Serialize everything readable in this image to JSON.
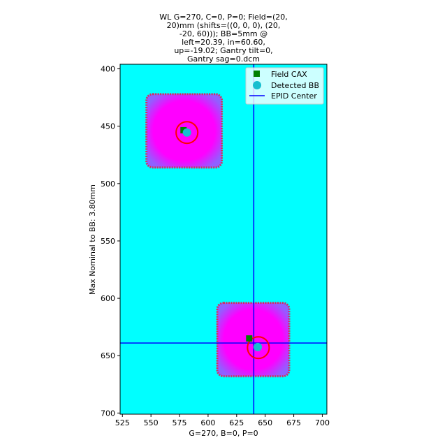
{
  "chart_data": {
    "type": "image-overlay",
    "title_lines": [
      "WL G=270, C=0, P=0; Field=(20,",
      "20)mm (shifts=((0, 0, 0), (20,",
      "-20, 60))); BB=5mm @",
      "left=20.39, in=60.60,",
      "up=-19.02; Gantry tilt=0,",
      "Gantry sag=0.dcm"
    ],
    "xlabel": "G=270, B=0, P=0",
    "ylabel": "Max Nominal to BB: 3.80mm",
    "xlim": [
      523,
      704
    ],
    "ylim": [
      701,
      396
    ],
    "xticks": [
      525,
      550,
      575,
      600,
      625,
      650,
      675,
      700
    ],
    "yticks": [
      400,
      450,
      500,
      550,
      600,
      650,
      700
    ],
    "background_color": "#00ffff",
    "field_color": "#ff00ff",
    "field_edge_color": "#cc3366",
    "fields": [
      {
        "x_min": 546,
        "x_max": 612,
        "y_min": 422,
        "y_max": 486
      },
      {
        "x_min": 608,
        "x_max": 671,
        "y_min": 604,
        "y_max": 668
      }
    ],
    "series": [
      {
        "name": "Field CAX",
        "marker": "square",
        "color": "#008000",
        "points": [
          [
            578.5,
            453.5
          ],
          [
            636.0,
            635.0
          ]
        ]
      },
      {
        "name": "Detected BB",
        "marker": "circle",
        "color": "#17becf",
        "points": [
          [
            581.5,
            455.5
          ],
          [
            643.5,
            642.5
          ]
        ]
      },
      {
        "name": "EPID Center",
        "marker": "line",
        "color": "#0000ff",
        "vline_x": 640.0,
        "hline_y": 639.0
      }
    ],
    "bb_outlines": [
      {
        "cx": 581.5,
        "cy": 455.5,
        "r": 9.5,
        "color": "#ff0000"
      },
      {
        "cx": 644.0,
        "cy": 643.0,
        "r": 9.5,
        "color": "#ff0000"
      }
    ],
    "legend_location": "upper right"
  }
}
